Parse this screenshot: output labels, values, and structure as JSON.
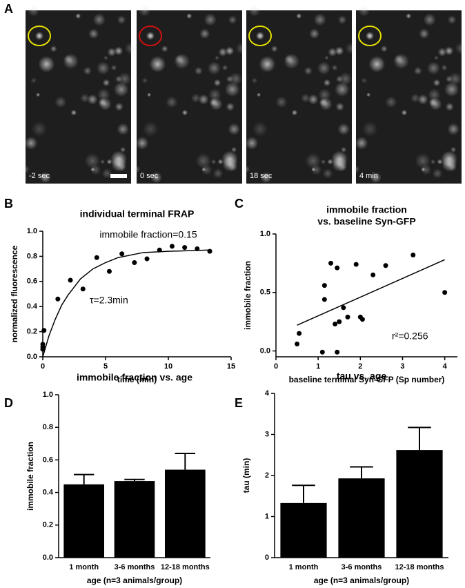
{
  "panel_a": {
    "label": "A",
    "frames": [
      "-2 sec",
      "0 sec",
      "18 sec",
      "4 min"
    ]
  },
  "chart_data": [
    {
      "type": "scatter",
      "panel": "B",
      "title": "individual terminal FRAP",
      "x_label": "time (min)",
      "y_label": "normalized fluorescence",
      "annotations": [
        "immobile fraction=0.15",
        "τ=2.3min"
      ],
      "x": [
        0,
        0,
        0,
        0.1,
        1.2,
        2.2,
        3.2,
        4.3,
        5.3,
        6.3,
        7.3,
        8.3,
        9.3,
        10.3,
        11.3,
        12.3,
        13.3
      ],
      "values": [
        0.06,
        0.1,
        0.08,
        0.21,
        0.46,
        0.61,
        0.54,
        0.79,
        0.68,
        0.82,
        0.75,
        0.78,
        0.85,
        0.88,
        0.87,
        0.86,
        0.84
      ],
      "fit_x": [
        0,
        0.5,
        1,
        1.5,
        2,
        3,
        4,
        5,
        6,
        8,
        10,
        13.3
      ],
      "fit_values": [
        0,
        0.17,
        0.3,
        0.41,
        0.49,
        0.62,
        0.7,
        0.75,
        0.79,
        0.83,
        0.84,
        0.85
      ],
      "xlim": [
        0,
        15
      ],
      "xticks": [
        0,
        5,
        10,
        15
      ],
      "ylim": [
        0,
        1
      ],
      "yticks": [
        {
          "value": 0,
          "label": "0.0"
        },
        0.2,
        0.4,
        0.6,
        0.8,
        {
          "value": 1,
          "label": "1.0"
        }
      ]
    },
    {
      "type": "scatter",
      "panel": "C",
      "title": [
        "immobile fraction",
        "vs. baseline Syn-GFP"
      ],
      "x_label": "baseline terminal Syn-GFP  (Sp number)",
      "y_label": "immobile fraction",
      "annotations": [
        "r²=0.256"
      ],
      "x": [
        0.5,
        0.55,
        1.1,
        1.15,
        1.15,
        1.3,
        1.4,
        1.45,
        1.45,
        1.5,
        1.6,
        1.7,
        1.9,
        2.0,
        2.05,
        2.3,
        2.6,
        3.25,
        4.0
      ],
      "values": [
        0.06,
        0.15,
        -0.01,
        0.56,
        0.44,
        0.75,
        0.23,
        0.71,
        -0.01,
        0.25,
        0.37,
        0.29,
        0.74,
        0.29,
        0.27,
        0.65,
        0.73,
        0.82,
        0.5
      ],
      "fit_x": [
        0.5,
        4.0
      ],
      "fit_values": [
        0.22,
        0.78
      ],
      "xlim": [
        0,
        4.3
      ],
      "xticks": [
        0,
        1,
        2,
        3,
        4
      ],
      "ylim": [
        -0.05,
        1
      ],
      "yticks": [
        {
          "value": 0,
          "label": "0.0"
        },
        0.5,
        {
          "value": 1,
          "label": "1.0"
        }
      ]
    },
    {
      "type": "bar",
      "panel": "D",
      "title": "immobile fraction vs. age",
      "x_label": "age (n=3 animals/group)",
      "y_label": "immobile fraction",
      "categories": [
        "1 month",
        "3-6 months",
        "12-18 months"
      ],
      "values": [
        0.45,
        0.47,
        0.54
      ],
      "errors": [
        0.06,
        0.01,
        0.1
      ],
      "color": "#000000",
      "ylim": [
        0,
        1
      ],
      "yticks": [
        {
          "value": 0,
          "label": "0.0"
        },
        0.2,
        0.4,
        0.6,
        0.8,
        {
          "value": 1,
          "label": "1.0"
        }
      ]
    },
    {
      "type": "bar",
      "panel": "E",
      "title": "tau vs. age",
      "x_label": "age (n=3 animals/group)",
      "y_label": "tau (min)",
      "categories": [
        "1 month",
        "3-6 months",
        "12-18 months"
      ],
      "values": [
        1.33,
        1.93,
        2.62
      ],
      "errors": [
        0.43,
        0.28,
        0.55
      ],
      "color": "#000000",
      "ylim": [
        0,
        4
      ],
      "yticks": [
        0,
        1,
        2,
        3,
        4
      ]
    }
  ]
}
